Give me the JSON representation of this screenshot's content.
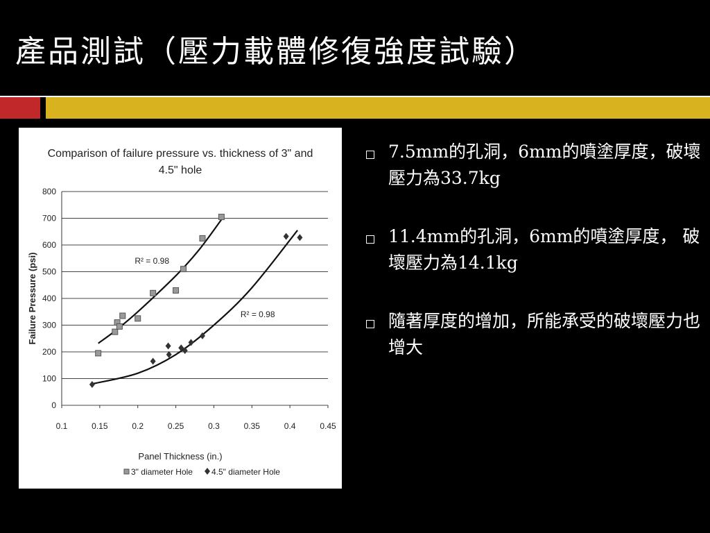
{
  "slide": {
    "title": "產品測試（壓力載體修復強度試驗）",
    "colors": {
      "background": "#000000",
      "accent_red": "#c0282a",
      "accent_gold": "#d9b21f",
      "text": "#ffffff"
    }
  },
  "bullets": [
    {
      "text": "7.5mm的孔洞，6mm的噴塗厚度，破壞壓力為33.7kg"
    },
    {
      "text": "11.4mm的孔洞，6mm的噴塗厚度， 破壞壓力為14.1kg"
    },
    {
      "text": "隨著厚度的增加，所能承受的破壞壓力也增大"
    }
  ],
  "chart_data": {
    "type": "scatter",
    "title": "Comparison of failure pressure vs. thickness of 3\" and 4.5\" hole",
    "title_lines": [
      "Comparison of failure pressure vs. thickness of 3\" and",
      "4.5\" hole"
    ],
    "xlabel": "Panel Thickness (in.)",
    "ylabel": "Failure Pressure (psi)",
    "xlim": [
      0.1,
      0.45
    ],
    "ylim": [
      0,
      800
    ],
    "xticks": [
      "0.1",
      "0.15",
      "0.2",
      "0.25",
      "0.3",
      "0.35",
      "0.4",
      "0.45"
    ],
    "yticks": [
      "0",
      "100",
      "200",
      "300",
      "400",
      "500",
      "600",
      "700",
      "800"
    ],
    "grid": "horizontal",
    "legend_position": "bottom",
    "series": [
      {
        "name": "3\" diameter Hole",
        "marker": "square",
        "points": [
          [
            0.148,
            195
          ],
          [
            0.17,
            275
          ],
          [
            0.173,
            310
          ],
          [
            0.176,
            295
          ],
          [
            0.18,
            335
          ],
          [
            0.2,
            325
          ],
          [
            0.22,
            420
          ],
          [
            0.25,
            430
          ],
          [
            0.26,
            510
          ],
          [
            0.285,
            625
          ],
          [
            0.31,
            705
          ]
        ],
        "trend": [
          [
            0.148,
            232
          ],
          [
            0.17,
            278
          ],
          [
            0.2,
            350
          ],
          [
            0.25,
            485
          ],
          [
            0.28,
            580
          ],
          [
            0.31,
            695
          ]
        ],
        "trend_label": "R² = 0.98"
      },
      {
        "name": "4.5\" diameter Hole",
        "marker": "diamond",
        "points": [
          [
            0.14,
            78
          ],
          [
            0.22,
            165
          ],
          [
            0.24,
            222
          ],
          [
            0.241,
            190
          ],
          [
            0.257,
            215
          ],
          [
            0.262,
            205
          ],
          [
            0.27,
            235
          ],
          [
            0.285,
            260
          ],
          [
            0.395,
            632
          ],
          [
            0.413,
            628
          ]
        ],
        "trend": [
          [
            0.14,
            80
          ],
          [
            0.2,
            120
          ],
          [
            0.25,
            190
          ],
          [
            0.3,
            300
          ],
          [
            0.35,
            440
          ],
          [
            0.41,
            655
          ]
        ],
        "trend_label": "R² = 0.98"
      }
    ]
  }
}
